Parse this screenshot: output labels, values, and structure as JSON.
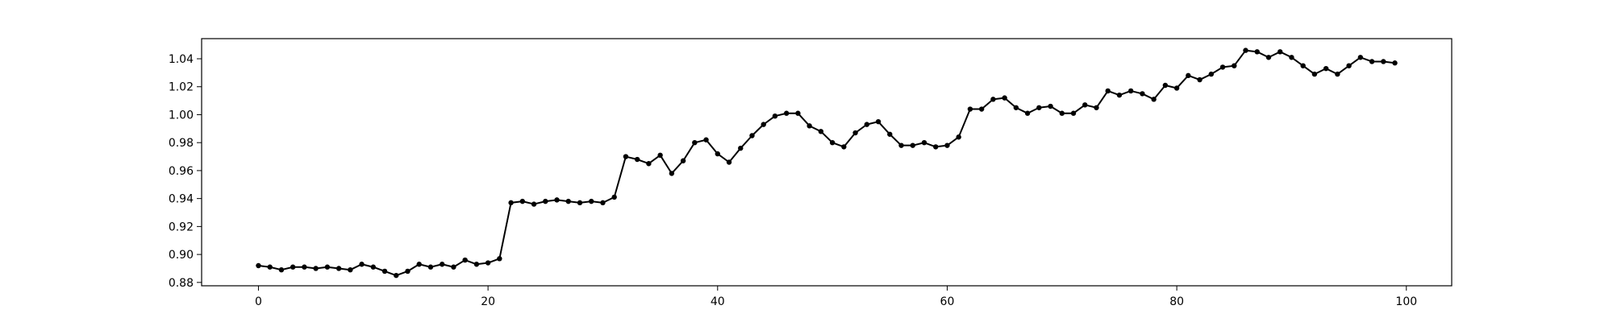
{
  "chart_data": {
    "type": "line",
    "title": "",
    "xlabel": "",
    "ylabel": "",
    "xlim": [
      -4.95,
      103.95
    ],
    "ylim": [
      0.8776,
      1.0544
    ],
    "xticks": [
      0,
      20,
      40,
      60,
      80,
      100
    ],
    "yticks": [
      0.88,
      0.9,
      0.92,
      0.94,
      0.96,
      0.98,
      1.0,
      1.02,
      1.04
    ],
    "xtick_labels": [
      "0",
      "20",
      "40",
      "60",
      "80",
      "100"
    ],
    "ytick_labels": [
      "0.88",
      "0.90",
      "0.92",
      "0.94",
      "0.96",
      "0.98",
      "1.00",
      "1.02",
      "1.04"
    ],
    "grid": false,
    "legend": "none",
    "line_color": "#000000",
    "marker": "circle",
    "series": [
      {
        "x": [
          0,
          1,
          2,
          3,
          4,
          5,
          6,
          7,
          8,
          9,
          10,
          11,
          12,
          13,
          14,
          15,
          16,
          17,
          18,
          19,
          20,
          21,
          22,
          23,
          24,
          25,
          26,
          27,
          28,
          29,
          30,
          31,
          32,
          33,
          34,
          35,
          36,
          37,
          38,
          39,
          40,
          41,
          42,
          43,
          44,
          45,
          46,
          47,
          48,
          49,
          50,
          51,
          52,
          53,
          54,
          55,
          56,
          57,
          58,
          59,
          60,
          61,
          62,
          63,
          64,
          65,
          66,
          67,
          68,
          69,
          70,
          71,
          72,
          73,
          74,
          75,
          76,
          77,
          78,
          79,
          80,
          81,
          82,
          83,
          84,
          85,
          86,
          87,
          88,
          89,
          90,
          91,
          92,
          93,
          94,
          95,
          96,
          97,
          98,
          99
        ],
        "values": [
          0.892,
          0.891,
          0.889,
          0.891,
          0.891,
          0.89,
          0.891,
          0.89,
          0.889,
          0.893,
          0.891,
          0.888,
          0.885,
          0.888,
          0.893,
          0.891,
          0.893,
          0.891,
          0.896,
          0.893,
          0.894,
          0.897,
          0.937,
          0.938,
          0.936,
          0.938,
          0.939,
          0.938,
          0.937,
          0.938,
          0.937,
          0.941,
          0.97,
          0.968,
          0.965,
          0.971,
          0.958,
          0.967,
          0.98,
          0.982,
          0.972,
          0.966,
          0.976,
          0.985,
          0.993,
          0.999,
          1.001,
          1.001,
          0.992,
          0.988,
          0.98,
          0.977,
          0.987,
          0.993,
          0.995,
          0.986,
          0.978,
          0.978,
          0.98,
          0.977,
          0.978,
          0.984,
          1.004,
          1.004,
          1.011,
          1.012,
          1.005,
          1.001,
          1.005,
          1.006,
          1.001,
          1.001,
          1.007,
          1.005,
          1.017,
          1.014,
          1.017,
          1.015,
          1.011,
          1.021,
          1.019,
          1.028,
          1.025,
          1.029,
          1.034,
          1.035,
          1.046,
          1.045,
          1.041,
          1.045,
          1.041,
          1.035,
          1.029,
          1.033,
          1.029,
          1.035,
          1.041,
          1.038,
          1.038,
          1.037
        ]
      }
    ]
  }
}
